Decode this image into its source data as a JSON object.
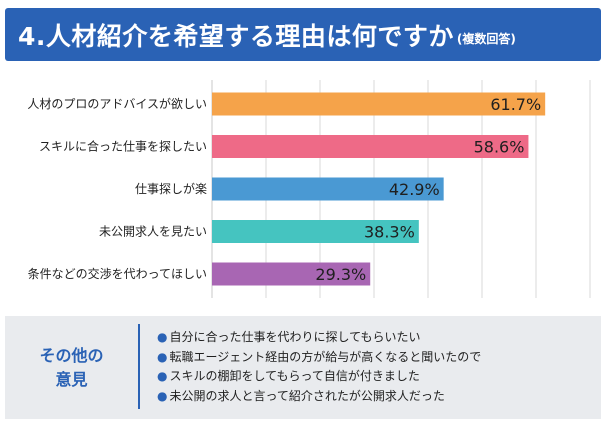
{
  "header": {
    "title": "4.人材紹介を希望する理由は何ですか",
    "subtitle": "(複数回答)"
  },
  "chart_data": {
    "type": "bar",
    "orientation": "horizontal",
    "title": "4.人材紹介を希望する理由は何ですか(複数回答)",
    "categories": [
      "人材のプロのアドバイスが欲しい",
      "スキルに合った仕事を探したい",
      "仕事探しが楽",
      "未公開求人を見たい",
      "条件などの交渉を代わってほしい"
    ],
    "values": [
      61.7,
      58.6,
      42.9,
      38.3,
      29.3
    ],
    "value_labels": [
      "61.7%",
      "58.6%",
      "42.9%",
      "38.3%",
      "29.3%"
    ],
    "colors": [
      "#f5a34a",
      "#ee6a87",
      "#4a99d3",
      "#45c4c0",
      "#a866b3"
    ],
    "xlim": [
      0,
      100
    ],
    "grid": true,
    "xlabel": "",
    "ylabel": ""
  },
  "other_opinions": {
    "heading_line1": "その他の",
    "heading_line2": "意見",
    "items": [
      "自分に合った仕事を代わりに探してもらいたい",
      "転職エージェント経由の方が給与が高くなると聞いたので",
      "スキルの棚卸をしてもらって自信が付きました",
      "未公開の求人と言って紹介されたが公開求人だった"
    ],
    "accent_color": "#2a62b5"
  }
}
